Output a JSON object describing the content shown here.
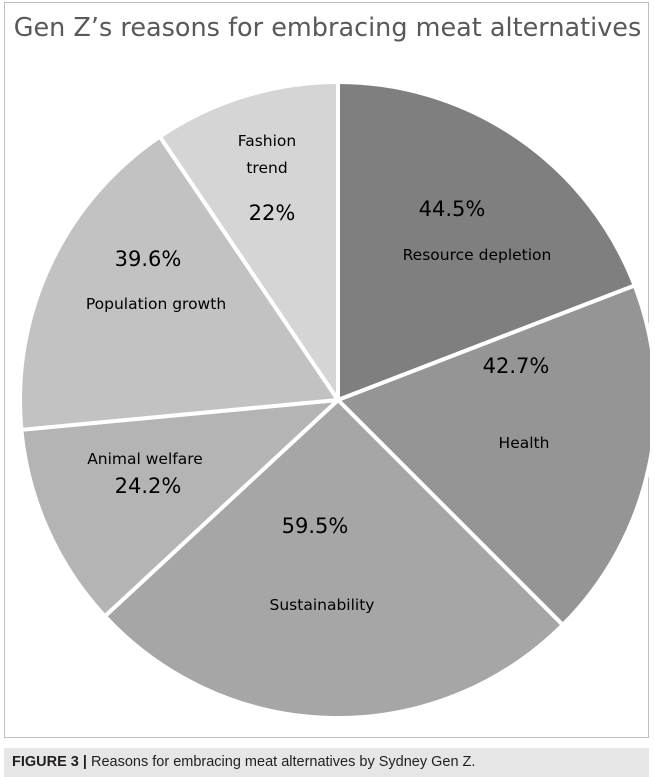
{
  "chart_data": {
    "type": "pie",
    "title": "Gen Z’s reasons for embracing meat alternatives",
    "slices": [
      {
        "label": "Resource depletion",
        "value_label": "44.5%",
        "value": 44.5,
        "color": "#7f7f7f"
      },
      {
        "label": "Health",
        "value_label": "42.7%",
        "value": 42.7,
        "color": "#959595"
      },
      {
        "label": "Sustainability",
        "value_label": "59.5%",
        "value": 59.5,
        "color": "#a6a6a6"
      },
      {
        "label": "Animal welfare",
        "value_label": "24.2%",
        "value": 24.2,
        "color": "#b4b4b4"
      },
      {
        "label": "Population growth",
        "value_label": "39.6%",
        "value": 39.6,
        "color": "#c2c2c2"
      },
      {
        "label": "Fashion trend",
        "value_label": "22%",
        "value": 22,
        "color": "#d5d5d5"
      }
    ]
  },
  "caption": {
    "figure_label": "FIGURE 3 |",
    "text": " Reasons for embracing meat alternatives by Sydney Gen Z."
  }
}
